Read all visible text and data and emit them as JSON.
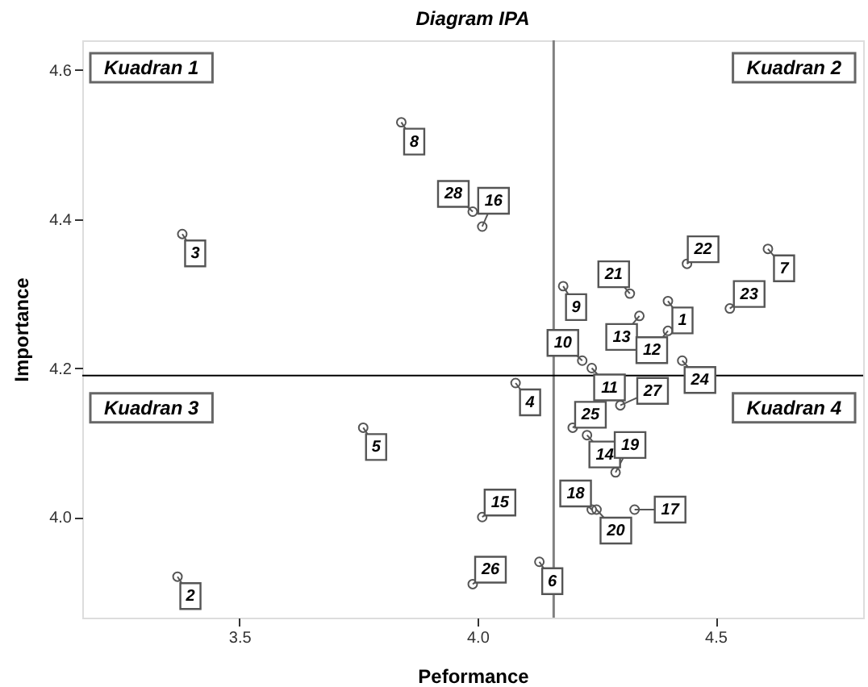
{
  "chart_data": {
    "type": "scatter",
    "title": "Diagram IPA",
    "xlabel": "Peformance",
    "ylabel": "Importance",
    "x": [
      3.38,
      3.84,
      3.99,
      4.01,
      4.44,
      4.61,
      4.32,
      4.18,
      4.4,
      4.53,
      4.34,
      4.4,
      4.22,
      4.24,
      4.43,
      4.08,
      4.3,
      4.2,
      4.23,
      4.29,
      3.76,
      4.24,
      4.25,
      4.33,
      4.01,
      3.99,
      4.13,
      3.37
    ],
    "series": [
      {
        "color": "#555555",
        "values": [
          4.38,
          4.53,
          4.41,
          4.39,
          4.34,
          4.36,
          4.3,
          4.31,
          4.29,
          4.28,
          4.27,
          4.25,
          4.21,
          4.2,
          4.21,
          4.18,
          4.15,
          4.12,
          4.11,
          4.06,
          4.12,
          4.01,
          4.01,
          4.01,
          4.0,
          3.91,
          3.94,
          3.92
        ]
      }
    ],
    "marker": "circle",
    "xlim": [
      3.17,
      4.81
    ],
    "ylim": [
      3.865,
      4.64
    ],
    "xticks": [
      3.5,
      {
        "value": 4,
        "label": "4.0"
      },
      4.5
    ],
    "yticks": [
      {
        "value": 4,
        "label": "4.0"
      },
      4.2,
      4.4,
      4.6
    ],
    "grid": false,
    "ref_lines": [
      {
        "axis": "x",
        "value": 4.16,
        "color": "#808080"
      },
      {
        "axis": "y",
        "value": 4.19,
        "color": "#000000"
      }
    ],
    "annotations": [
      "Kuadran 1",
      "Kuadran 2",
      "Kuadran 3",
      "Kuadran 4",
      {
        "text": "3",
        "x": 3.38,
        "y": 4.38
      },
      {
        "text": "8",
        "x": 3.84,
        "y": 4.53
      },
      {
        "text": "28",
        "x": 3.99,
        "y": 4.41
      },
      {
        "text": "16",
        "x": 4.01,
        "y": 4.39
      },
      {
        "text": "22",
        "x": 4.44,
        "y": 4.34
      },
      {
        "text": "7",
        "x": 4.61,
        "y": 4.36
      },
      {
        "text": "21",
        "x": 4.32,
        "y": 4.3
      },
      {
        "text": "9",
        "x": 4.18,
        "y": 4.31
      },
      {
        "text": "1",
        "x": 4.4,
        "y": 4.29
      },
      {
        "text": "23",
        "x": 4.53,
        "y": 4.28
      },
      {
        "text": "13",
        "x": 4.34,
        "y": 4.27
      },
      {
        "text": "12",
        "x": 4.4,
        "y": 4.25
      },
      {
        "text": "10",
        "x": 4.22,
        "y": 4.21
      },
      {
        "text": "11",
        "x": 4.24,
        "y": 4.2
      },
      {
        "text": "24",
        "x": 4.43,
        "y": 4.21
      },
      {
        "text": "4",
        "x": 4.08,
        "y": 4.18
      },
      {
        "text": "27",
        "x": 4.3,
        "y": 4.15
      },
      {
        "text": "25",
        "x": 4.2,
        "y": 4.12
      },
      {
        "text": "14",
        "x": 4.23,
        "y": 4.11
      },
      {
        "text": "19",
        "x": 4.29,
        "y": 4.06
      },
      {
        "text": "5",
        "x": 3.76,
        "y": 4.12
      },
      {
        "text": "18",
        "x": 4.24,
        "y": 4.01
      },
      {
        "text": "20",
        "x": 4.25,
        "y": 4.01
      },
      {
        "text": "17",
        "x": 4.33,
        "y": 4.01
      },
      {
        "text": "15",
        "x": 4.01,
        "y": 4.0
      },
      {
        "text": "26",
        "x": 3.99,
        "y": 3.91
      },
      {
        "text": "6",
        "x": 4.13,
        "y": 3.94
      },
      {
        "text": "2",
        "x": 3.37,
        "y": 3.92
      }
    ]
  }
}
